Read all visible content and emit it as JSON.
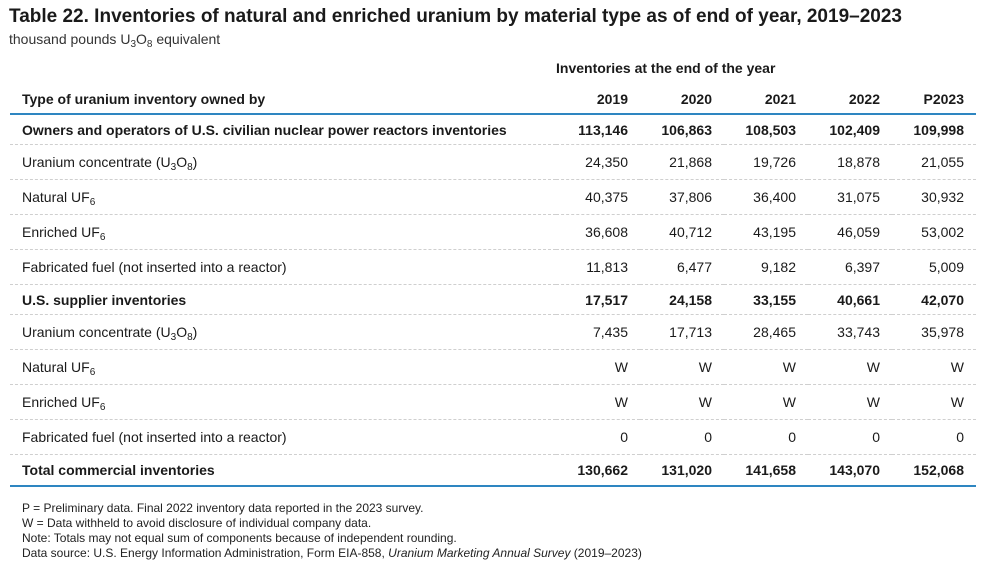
{
  "title": "Table 22. Inventories of natural and enriched uranium by material type as of end of year, 2019–2023",
  "subtitle": {
    "pre": "thousand pounds U",
    "s1": "3",
    "mid": "O",
    "s2": "8",
    "post": " equivalent"
  },
  "table": {
    "group_header": "Inventories at the end of the year",
    "label_header": "Type of uranium inventory owned by",
    "years": [
      "2019",
      "2020",
      "2021",
      "2022",
      "P2023"
    ],
    "rows": [
      {
        "label": "Owners and operators of U.S. civilian nuclear power reactors inventories",
        "bold": true,
        "values": [
          "113,146",
          "106,863",
          "108,503",
          "102,409",
          "109,998"
        ]
      },
      {
        "label": "Uranium concentrate (U",
        "s1": "3",
        "mid": "O",
        "s2": "8",
        "post": ")",
        "values": [
          "24,350",
          "21,868",
          "19,726",
          "18,878",
          "21,055"
        ]
      },
      {
        "label": "Natural UF",
        "s1": "6",
        "values": [
          "40,375",
          "37,806",
          "36,400",
          "31,075",
          "30,932"
        ]
      },
      {
        "label": "Enriched UF",
        "s1": "6",
        "values": [
          "36,608",
          "40,712",
          "43,195",
          "46,059",
          "53,002"
        ]
      },
      {
        "label": "Fabricated fuel (not inserted into a reactor)",
        "values": [
          "11,813",
          "6,477",
          "9,182",
          "6,397",
          "5,009"
        ]
      },
      {
        "label": "U.S. supplier inventories",
        "bold": true,
        "values": [
          "17,517",
          "24,158",
          "33,155",
          "40,661",
          "42,070"
        ]
      },
      {
        "label": "Uranium concentrate (U",
        "s1": "3",
        "mid": "O",
        "s2": "8",
        "post": ")",
        "values": [
          "7,435",
          "17,713",
          "28,465",
          "33,743",
          "35,978"
        ]
      },
      {
        "label": "Natural UF",
        "s1": "6",
        "values": [
          "W",
          "W",
          "W",
          "W",
          "W"
        ]
      },
      {
        "label": "Enriched UF",
        "s1": "6",
        "values": [
          "W",
          "W",
          "W",
          "W",
          "W"
        ]
      },
      {
        "label": "Fabricated fuel (not inserted into a reactor)",
        "values": [
          "0",
          "0",
          "0",
          "0",
          "0"
        ]
      },
      {
        "label": "Total commercial inventories",
        "bold": true,
        "values": [
          "130,662",
          "131,020",
          "141,658",
          "143,070",
          "152,068"
        ]
      }
    ]
  },
  "notes": {
    "preliminary": "P = Preliminary data. Final 2022 inventory data reported in the 2023 survey.",
    "withheld": "W = Data withheld to avoid disclosure of individual company data.",
    "rounding": "Note: Totals may not equal sum of components because of independent rounding.",
    "source_pre": "Data source: U.S. Energy Information Administration, Form EIA-858, ",
    "source_italic": "Uranium Marketing Annual Survey",
    "source_post": " (2019–2023)"
  }
}
